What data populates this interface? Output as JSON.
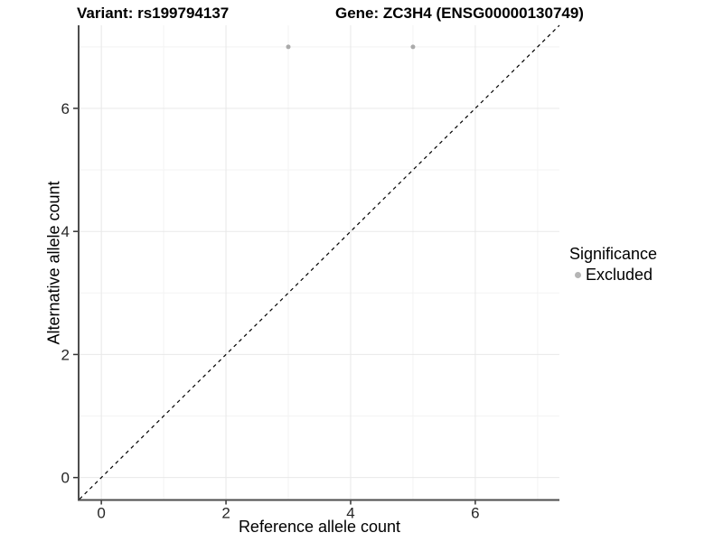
{
  "chart_data": {
    "type": "scatter",
    "title_left": "Variant: rs199794137",
    "title_right": "Gene: ZC3H4 (ENSG00000130749)",
    "xlabel": "Reference allele count",
    "ylabel": "Alternative allele count",
    "xlim": [
      -0.35,
      7.35
    ],
    "ylim": [
      -0.35,
      7.35
    ],
    "x_major_ticks": [
      0,
      2,
      4,
      6
    ],
    "y_major_ticks": [
      0,
      2,
      4,
      6
    ],
    "x_minor_gridlines": [
      1,
      3,
      5,
      7
    ],
    "y_minor_gridlines": [
      1,
      3,
      5,
      7
    ],
    "grid": "major+minor",
    "points": [
      {
        "x": 3,
        "y": 7,
        "significance": "Excluded"
      },
      {
        "x": 5,
        "y": 7,
        "significance": "Excluded"
      }
    ],
    "identity_line": {
      "style": "dashed",
      "equation": "y = x",
      "from": [
        -0.35,
        -0.35
      ],
      "to": [
        7.35,
        7.35
      ]
    },
    "legend": {
      "title": "Significance",
      "position": "right",
      "items": [
        {
          "label": "Excluded",
          "color": "#b5b5b5"
        }
      ]
    },
    "colors": {
      "point": "#aaaaaa",
      "grid_major": "#e8e8e8",
      "grid_minor": "#f3f3f3",
      "axis_line": "#4d4d4d",
      "tick_mark": "#333333",
      "tick_label": "#262626",
      "identity_line": "#000000",
      "background": "#ffffff"
    }
  }
}
